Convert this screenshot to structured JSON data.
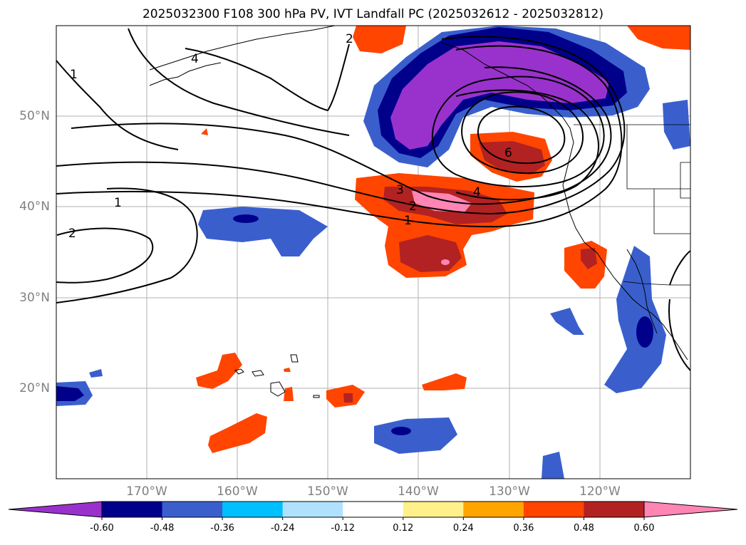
{
  "title": "2025032300 F108 300 hPa PV, IVT Landfall PC (2025032612 - 2025032812)",
  "lat_labels": [
    "50°N",
    "40°N",
    "30°N",
    "20°N"
  ],
  "lon_labels": [
    "170°W",
    "160°W",
    "150°W",
    "140°W",
    "130°W",
    "120°W"
  ],
  "contour_labels": [
    "1",
    "2",
    "4",
    "6",
    "4",
    "3",
    "2",
    "1",
    "1",
    "2"
  ],
  "colorbar": {
    "ticks": [
      "-0.60",
      "-0.48",
      "-0.36",
      "-0.24",
      "-0.12",
      "0.12",
      "0.24",
      "0.36",
      "0.48",
      "0.60"
    ],
    "colors": [
      "#9932cc",
      "#00008b",
      "#3a5fcd",
      "#00bfff",
      "#b0e2ff",
      "#ffffff",
      "#fff08a",
      "#ffa500",
      "#ff4500",
      "#b22222",
      "#ff85b5"
    ]
  }
}
